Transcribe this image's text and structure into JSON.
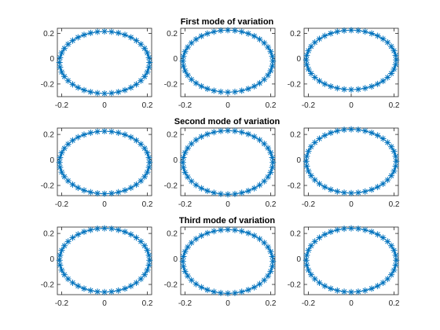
{
  "figure": {
    "rows": [
      {
        "title": "First mode of variation"
      },
      {
        "title": "Second mode of variation"
      },
      {
        "title": "Third mode of variation"
      }
    ]
  },
  "colors": {
    "series": "#0072BD",
    "axis": "#262626",
    "background": "#ffffff"
  },
  "chart_data": [
    {
      "type": "scatter",
      "panel": "row1-col1",
      "title": "First mode of variation",
      "show_title": false,
      "marker": "asterisk",
      "connected": true,
      "grid": false,
      "xlim": [
        -0.22,
        0.22
      ],
      "ylim": [
        -0.3,
        0.24
      ],
      "xticks": [
        -0.2,
        0,
        0.2
      ],
      "xtick_labels": [
        "-0.2",
        "0",
        "0.2"
      ],
      "yticks": [
        -0.2,
        0,
        0.2
      ],
      "ytick_labels": [
        "-0.2",
        "0",
        "0.2"
      ],
      "series": [
        {
          "shape": "closed-contour",
          "center": [
            0,
            -0.03
          ],
          "radius_x": 0.21,
          "radius_y": 0.245,
          "points": 40
        }
      ]
    },
    {
      "type": "scatter",
      "panel": "row1-col2",
      "title": "First mode of variation",
      "show_title": true,
      "marker": "asterisk",
      "connected": true,
      "grid": false,
      "xlim": [
        -0.22,
        0.22
      ],
      "ylim": [
        -0.3,
        0.24
      ],
      "xticks": [
        -0.2,
        0,
        0.2
      ],
      "xtick_labels": [
        "-0.2",
        "0",
        "0.2"
      ],
      "yticks": [
        -0.2,
        0,
        0.2
      ],
      "ytick_labels": [
        "-0.2",
        "0",
        "0.2"
      ],
      "series": [
        {
          "shape": "closed-contour",
          "center": [
            0,
            -0.02
          ],
          "radius_x": 0.21,
          "radius_y": 0.245,
          "points": 40
        }
      ]
    },
    {
      "type": "scatter",
      "panel": "row1-col3",
      "title": "First mode of variation",
      "show_title": false,
      "marker": "asterisk",
      "connected": true,
      "grid": false,
      "xlim": [
        -0.22,
        0.22
      ],
      "ylim": [
        -0.3,
        0.24
      ],
      "xticks": [
        -0.2,
        0,
        0.2
      ],
      "xtick_labels": [
        "-0.2",
        "0",
        "0.2"
      ],
      "yticks": [
        -0.2,
        0,
        0.2
      ],
      "ytick_labels": [
        "-0.2",
        "0",
        "0.2"
      ],
      "series": [
        {
          "shape": "closed-contour",
          "center": [
            0,
            -0.01
          ],
          "radius_x": 0.21,
          "radius_y": 0.235,
          "points": 40
        }
      ]
    },
    {
      "type": "scatter",
      "panel": "row2-col1",
      "title": "Second mode of variation",
      "show_title": false,
      "marker": "asterisk",
      "connected": true,
      "grid": false,
      "xlim": [
        -0.22,
        0.22
      ],
      "ylim": [
        -0.28,
        0.25
      ],
      "xticks": [
        -0.2,
        0,
        0.2
      ],
      "xtick_labels": [
        "-0.2",
        "0",
        "0.2"
      ],
      "yticks": [
        -0.2,
        0,
        0.2
      ],
      "ytick_labels": [
        "-0.2",
        "0",
        "0.2"
      ],
      "series": [
        {
          "shape": "closed-contour",
          "center": [
            0,
            -0.02
          ],
          "radius_x": 0.21,
          "radius_y": 0.245,
          "points": 40
        }
      ]
    },
    {
      "type": "scatter",
      "panel": "row2-col2",
      "title": "Second mode of variation",
      "show_title": true,
      "marker": "asterisk",
      "connected": true,
      "grid": false,
      "xlim": [
        -0.22,
        0.22
      ],
      "ylim": [
        -0.28,
        0.25
      ],
      "xticks": [
        -0.2,
        0,
        0.2
      ],
      "xtick_labels": [
        "-0.2",
        "0",
        "0.2"
      ],
      "yticks": [
        -0.2,
        0,
        0.2
      ],
      "ytick_labels": [
        "-0.2",
        "0",
        "0.2"
      ],
      "series": [
        {
          "shape": "closed-contour",
          "center": [
            0,
            -0.02
          ],
          "radius_x": 0.21,
          "radius_y": 0.25,
          "points": 40
        }
      ]
    },
    {
      "type": "scatter",
      "panel": "row2-col3",
      "title": "Second mode of variation",
      "show_title": false,
      "marker": "asterisk",
      "connected": true,
      "grid": false,
      "xlim": [
        -0.22,
        0.22
      ],
      "ylim": [
        -0.28,
        0.25
      ],
      "xticks": [
        -0.2,
        0,
        0.2
      ],
      "xtick_labels": [
        "-0.2",
        "0",
        "0.2"
      ],
      "yticks": [
        -0.2,
        0,
        0.2
      ],
      "ytick_labels": [
        "-0.2",
        "0",
        "0.2"
      ],
      "series": [
        {
          "shape": "closed-contour",
          "center": [
            0,
            -0.01
          ],
          "radius_x": 0.21,
          "radius_y": 0.25,
          "points": 40
        }
      ]
    },
    {
      "type": "scatter",
      "panel": "row3-col1",
      "title": "Third mode of variation",
      "show_title": false,
      "marker": "asterisk",
      "connected": true,
      "grid": false,
      "xlim": [
        -0.22,
        0.22
      ],
      "ylim": [
        -0.28,
        0.25
      ],
      "xticks": [
        -0.2,
        0,
        0.2
      ],
      "xtick_labels": [
        "-0.2",
        "0",
        "0.2"
      ],
      "yticks": [
        -0.2,
        0,
        0.2
      ],
      "ytick_labels": [
        "-0.2",
        "0",
        "0.2"
      ],
      "series": [
        {
          "shape": "closed-contour",
          "center": [
            0,
            -0.01
          ],
          "radius_x": 0.21,
          "radius_y": 0.25,
          "points": 40
        }
      ]
    },
    {
      "type": "scatter",
      "panel": "row3-col2",
      "title": "Third mode of variation",
      "show_title": true,
      "marker": "asterisk",
      "connected": true,
      "grid": false,
      "xlim": [
        -0.22,
        0.22
      ],
      "ylim": [
        -0.28,
        0.25
      ],
      "xticks": [
        -0.2,
        0,
        0.2
      ],
      "xtick_labels": [
        "-0.2",
        "0",
        "0.2"
      ],
      "yticks": [
        -0.2,
        0,
        0.2
      ],
      "ytick_labels": [
        "-0.2",
        "0",
        "0.2"
      ],
      "series": [
        {
          "shape": "closed-contour",
          "center": [
            0,
            -0.02
          ],
          "radius_x": 0.21,
          "radius_y": 0.25,
          "points": 40
        }
      ]
    },
    {
      "type": "scatter",
      "panel": "row3-col3",
      "title": "Third mode of variation",
      "show_title": false,
      "marker": "asterisk",
      "connected": true,
      "grid": false,
      "xlim": [
        -0.22,
        0.22
      ],
      "ylim": [
        -0.28,
        0.25
      ],
      "xticks": [
        -0.2,
        0,
        0.2
      ],
      "xtick_labels": [
        "-0.2",
        "0",
        "0.2"
      ],
      "yticks": [
        -0.2,
        0,
        0.2
      ],
      "ytick_labels": [
        "-0.2",
        "0",
        "0.2"
      ],
      "series": [
        {
          "shape": "closed-contour",
          "center": [
            0,
            -0.01
          ],
          "radius_x": 0.21,
          "radius_y": 0.25,
          "points": 40
        }
      ]
    }
  ]
}
